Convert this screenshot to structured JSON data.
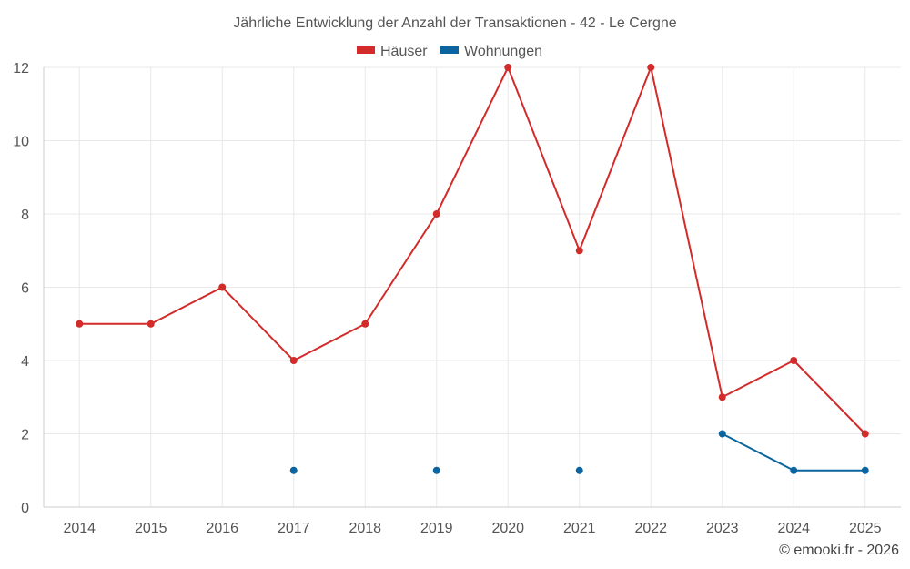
{
  "chart_data": {
    "type": "line",
    "title": "Jährliche Entwicklung der Anzahl der Transaktionen - 42 - Le Cergne",
    "categories": [
      "2014",
      "2015",
      "2016",
      "2017",
      "2018",
      "2019",
      "2020",
      "2021",
      "2022",
      "2023",
      "2024",
      "2025"
    ],
    "series": [
      {
        "name": "Häuser",
        "color": "#d32a2a",
        "values": [
          5,
          5,
          6,
          4,
          5,
          8,
          12,
          7,
          12,
          3,
          4,
          2
        ]
      },
      {
        "name": "Wohnungen",
        "color": "#0a64a0",
        "values": [
          null,
          null,
          null,
          1,
          null,
          1,
          null,
          1,
          null,
          2,
          1,
          1
        ]
      }
    ],
    "yticks": [
      0,
      2,
      4,
      6,
      8,
      10,
      12
    ],
    "ylim": [
      0,
      12
    ],
    "xlabel": "",
    "ylabel": "",
    "grid": true,
    "legend_position": "top-center"
  },
  "credit": "© emooki.fr - 2026"
}
